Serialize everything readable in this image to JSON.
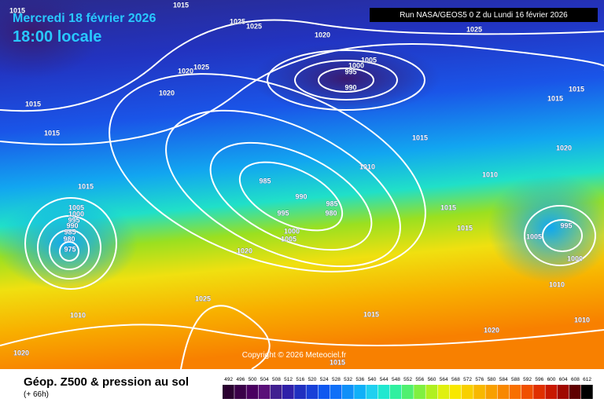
{
  "header": {
    "date": "Mercredi 18 février 2026",
    "time": "18:00 locale",
    "run": "Run NASA/GEOS5 0 Z du Lundi 16 février 2026"
  },
  "copyright": "Copyright © 2026 Meteociel.fr",
  "footer": {
    "title": "Géop. Z500 & pression au sol",
    "lead": "(+ 66h)"
  },
  "legend": [
    492,
    496,
    500,
    504,
    508,
    512,
    516,
    520,
    524,
    528,
    532,
    536,
    540,
    544,
    548,
    552,
    556,
    560,
    564,
    568,
    572,
    576,
    580,
    584,
    588,
    592,
    596,
    600,
    604,
    608,
    612
  ],
  "isobars": [
    1015,
    1015,
    1025,
    1025,
    1020,
    1025,
    1020,
    1025,
    1020,
    1005,
    1000,
    995,
    990,
    1015,
    1015,
    1015,
    1015,
    1015,
    1020,
    1010,
    1010,
    985,
    990,
    995,
    985,
    980,
    1000,
    1005,
    1015,
    1015,
    1015,
    1005,
    1000,
    995,
    990,
    985,
    980,
    975,
    995,
    1005,
    1000,
    1020,
    1025,
    1010,
    1015,
    1010,
    1010,
    1020,
    1020,
    1015
  ]
}
